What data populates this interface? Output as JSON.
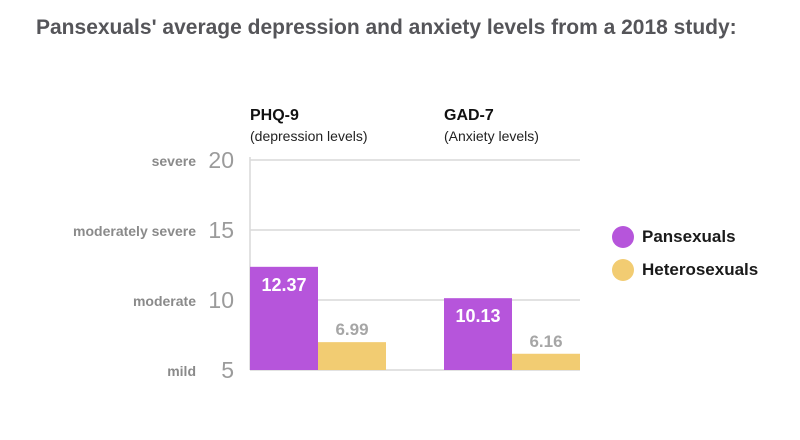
{
  "title": "Pansexuals' average depression and anxiety levels from a 2018 study:",
  "colors": {
    "pansexuals": "#b655db",
    "heterosexuals": "#f2cc72",
    "grid": "#d9d9d9",
    "tick": "#9b9b9b",
    "severity_label": "#8a8a8a",
    "value_on_bar": "#ffffff",
    "value_above_bar": "#a6a6a6"
  },
  "legend": [
    {
      "label": "Pansexuals",
      "color": "#b655db"
    },
    {
      "label": "Heterosexuals",
      "color": "#f2cc72"
    }
  ],
  "chart_data": {
    "type": "bar",
    "title": "Pansexuals' average depression and anxiety levels from a 2018 study:",
    "categories": [
      {
        "name": "PHQ-9",
        "sub": "(depression levels)"
      },
      {
        "name": "GAD-7",
        "sub": "(Anxiety levels)"
      }
    ],
    "series": [
      {
        "name": "Pansexuals",
        "values": [
          12.37,
          10.13
        ],
        "color": "#b655db"
      },
      {
        "name": "Heterosexuals",
        "values": [
          6.99,
          6.16
        ],
        "color": "#f2cc72"
      }
    ],
    "yticks": [
      5,
      10,
      15,
      20
    ],
    "ylim": [
      5,
      20
    ],
    "severity_labels": [
      {
        "value": 20,
        "label": "severe"
      },
      {
        "value": 15,
        "label": "moderately severe"
      },
      {
        "value": 10,
        "label": "moderate"
      },
      {
        "value": 5,
        "label": "mild"
      }
    ],
    "grid": true,
    "legend_position": "right"
  }
}
